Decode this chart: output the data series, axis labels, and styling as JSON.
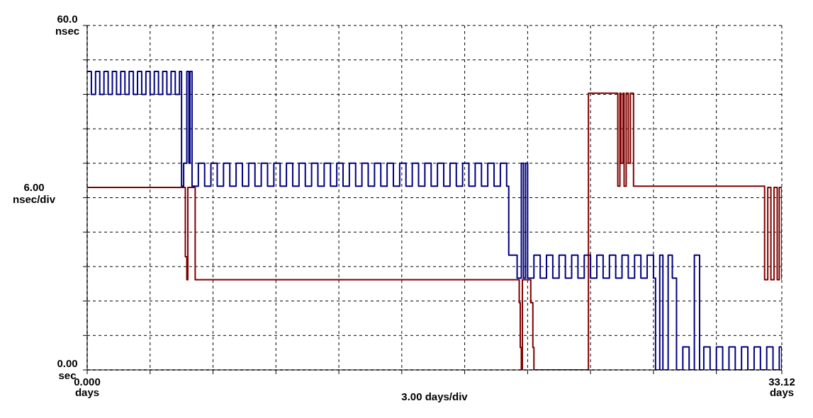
{
  "chart_data": {
    "type": "step",
    "xlabel": "3.00 days/div",
    "ylabel": "6.00 nsec/div",
    "xlim": [
      0,
      33.12
    ],
    "xticks": [
      {
        "value": 0,
        "label": "0.000 days"
      },
      {
        "value": 3,
        "label": null
      },
      {
        "value": 6,
        "label": null
      },
      {
        "value": 9,
        "label": null
      },
      {
        "value": 12,
        "label": null
      },
      {
        "value": 15,
        "label": null
      },
      {
        "value": 18,
        "label": null
      },
      {
        "value": 21,
        "label": null
      },
      {
        "value": 24,
        "label": null
      },
      {
        "value": 27,
        "label": null
      },
      {
        "value": 30,
        "label": null
      },
      {
        "value": 33.12,
        "label": "33.12 days"
      }
    ],
    "ylim": [
      0,
      60
    ],
    "yticks": [
      {
        "value": 0,
        "label": "0.00 sec"
      },
      {
        "value": 6,
        "label": null
      },
      {
        "value": 12,
        "label": null
      },
      {
        "value": 18,
        "label": null
      },
      {
        "value": 24,
        "label": null
      },
      {
        "value": 30,
        "label": null
      },
      {
        "value": 36,
        "label": null
      },
      {
        "value": 42,
        "label": null
      },
      {
        "value": 48,
        "label": null
      },
      {
        "value": 54,
        "label": null
      },
      {
        "value": 60,
        "label": "60.0 nsec"
      }
    ],
    "grid": true,
    "series": [
      {
        "color": "#000080",
        "x": [
          0,
          0.2,
          0.4,
          0.6,
          0.8,
          1,
          1.2,
          1.4,
          1.6,
          1.8,
          2,
          2.2,
          2.4,
          2.6,
          2.8,
          3,
          3.2,
          3.4,
          3.6,
          3.8,
          4,
          4.2,
          4.4,
          4.5,
          4.6,
          4.75,
          4.85,
          4.9,
          5.0,
          5.3,
          5.6,
          5.9,
          6.2,
          6.5,
          6.8,
          7.1,
          7.4,
          7.7,
          8,
          8.3,
          8.6,
          8.9,
          9.2,
          9.5,
          9.8,
          10.1,
          10.4,
          10.7,
          11,
          11.3,
          11.6,
          11.9,
          12.2,
          12.5,
          12.8,
          13.1,
          13.4,
          13.7,
          14,
          14.3,
          14.6,
          14.9,
          15.2,
          15.5,
          15.8,
          16.1,
          16.4,
          16.7,
          17,
          17.3,
          17.6,
          17.9,
          18.2,
          18.5,
          18.8,
          19.1,
          19.4,
          19.7,
          20,
          20.1,
          20.5,
          20.7,
          20.8,
          20.9,
          21.0,
          21.3,
          21.6,
          21.9,
          22.2,
          22.5,
          22.8,
          23.1,
          23.4,
          23.7,
          24,
          24.3,
          24.6,
          24.9,
          25.2,
          25.5,
          25.8,
          26.1,
          26.4,
          26.7,
          27,
          27.1,
          27.3,
          27.45,
          27.7,
          27.9,
          28.1,
          28.4,
          28.7,
          28.95,
          29.2,
          29.4,
          29.7,
          30,
          30.3,
          30.6,
          30.9,
          31.2,
          31.5,
          31.8,
          32.1,
          32.4,
          32.7,
          33,
          33.12
        ],
        "values": [
          52,
          48,
          52,
          48,
          52,
          48,
          52,
          48,
          52,
          48,
          52,
          48,
          52,
          48,
          52,
          48,
          52,
          48,
          52,
          48,
          52,
          48,
          52,
          32,
          36,
          52,
          36,
          52,
          32,
          36,
          32,
          36,
          32,
          36,
          32,
          36,
          32,
          36,
          32,
          36,
          32,
          36,
          32,
          36,
          32,
          36,
          32,
          36,
          32,
          36,
          32,
          36,
          32,
          36,
          32,
          36,
          32,
          36,
          32,
          36,
          32,
          36,
          32,
          36,
          32,
          36,
          32,
          36,
          32,
          36,
          32,
          36,
          32,
          36,
          32,
          36,
          32,
          36,
          32,
          20,
          16,
          36,
          16,
          36,
          16,
          20,
          16,
          20,
          16,
          20,
          16,
          20,
          16,
          20,
          16,
          20,
          16,
          20,
          16,
          20,
          16,
          20,
          16,
          20,
          16,
          0,
          20,
          0,
          20,
          16,
          0,
          4,
          0,
          20,
          0,
          4,
          0,
          4,
          0,
          4,
          0,
          4,
          0,
          4,
          0,
          4,
          0,
          4,
          0
        ]
      },
      {
        "color": "#800000",
        "x": [
          0,
          4.68,
          4.75,
          4.8,
          5.15,
          20.6,
          20.65,
          20.7,
          20.75,
          21.15,
          21.25,
          21.3,
          23.9,
          25.3,
          25.4,
          25.45,
          25.55,
          25.6,
          25.7,
          25.8,
          25.9,
          26.05,
          32.3,
          32.45,
          32.6,
          32.75,
          32.9,
          33.0,
          33.12
        ],
        "values": [
          31.8,
          19.7,
          15.7,
          31.8,
          15.7,
          11.7,
          3.9,
          0,
          15.7,
          11.7,
          3.9,
          0,
          48.2,
          32,
          48.2,
          36,
          48.2,
          32,
          48.2,
          36,
          48.2,
          32,
          15.7,
          31.8,
          15.7,
          31.8,
          15.7,
          31.8,
          15.7
        ]
      }
    ]
  }
}
